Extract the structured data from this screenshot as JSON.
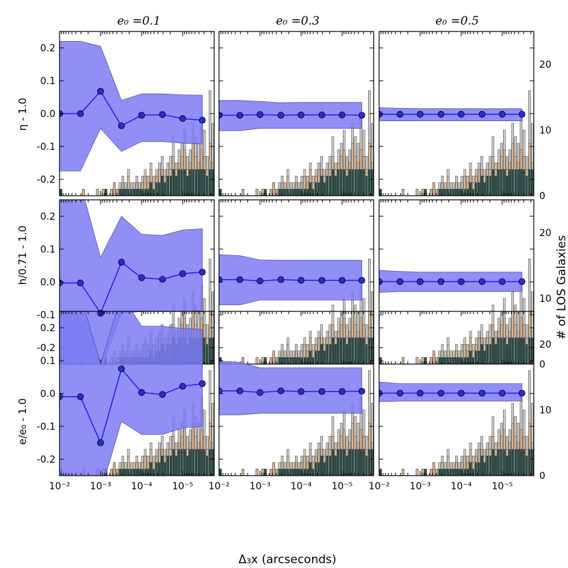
{
  "figure": {
    "column_titles": [
      "e₀ =0.1",
      "e₀ =0.3",
      "e₀ =0.5"
    ],
    "row_labels": [
      "η - 1.0",
      "h/0.71 - 1.0",
      "e/e₀ - 1.0"
    ],
    "xlabel": "Δ₃x (arcseconds)",
    "right_ylabel": "# of LOS Galaxies",
    "y_ticks": [
      "0.2",
      "0.1",
      "0.0",
      "-0.1",
      "-0.2"
    ],
    "x_ticks": [
      "10⁻²",
      "10⁻³",
      "10⁻⁴",
      "10⁻⁵"
    ],
    "hist_ticks": [
      "20",
      "10",
      "0"
    ]
  },
  "chart_data": {
    "type": "line",
    "x_scale": "log (reversed)",
    "xlim": [
      0.01,
      1.7e-06
    ],
    "ylim": [
      -0.25,
      0.25
    ],
    "hist_ylim": [
      0,
      25
    ],
    "x": [
      0.01,
      0.0031,
      0.001,
      0.00031,
      0.0001,
      3.1e-05,
      1e-05,
      3.3e-06
    ],
    "grid": false,
    "colors": {
      "band": "#7b7bf5",
      "band_edge": "#5555aa",
      "line": "#1f1fe8",
      "marker": "#2a2ad8",
      "hist_total": "#c8c8c8",
      "hist_mid": "#ddb58f",
      "hist_low": "#1f4a45"
    },
    "panels": [
      {
        "row": 0,
        "col": 0,
        "values": [
          0.0,
          0.0,
          0.068,
          -0.037,
          -0.005,
          -0.003,
          -0.015,
          -0.02
        ],
        "upper": [
          0.22,
          0.22,
          0.205,
          0.04,
          0.06,
          0.06,
          0.057,
          0.056
        ],
        "lower": [
          -0.175,
          -0.175,
          -0.045,
          -0.115,
          -0.085,
          -0.085,
          -0.09,
          -0.092
        ]
      },
      {
        "row": 0,
        "col": 1,
        "values": [
          -0.005,
          -0.005,
          -0.003,
          -0.005,
          -0.004,
          -0.004,
          -0.004,
          -0.005
        ],
        "upper": [
          0.04,
          0.04,
          0.037,
          0.033,
          0.034,
          0.034,
          0.034,
          0.034
        ],
        "lower": [
          -0.052,
          -0.052,
          -0.045,
          -0.045,
          -0.045,
          -0.045,
          -0.045,
          -0.045
        ]
      },
      {
        "row": 0,
        "col": 2,
        "values": [
          -0.002,
          -0.002,
          -0.002,
          -0.002,
          -0.002,
          -0.002,
          -0.002,
          -0.002
        ],
        "upper": [
          0.018,
          0.016,
          0.015,
          0.015,
          0.015,
          0.015,
          0.015,
          0.015
        ],
        "lower": [
          -0.022,
          -0.022,
          -0.022,
          -0.022,
          -0.022,
          -0.022,
          -0.022,
          -0.022
        ]
      },
      {
        "row": 1,
        "col": 0,
        "values": [
          -0.003,
          -0.003,
          -0.095,
          0.06,
          0.013,
          0.008,
          0.025,
          0.03
        ],
        "upper": [
          0.3,
          0.3,
          0.075,
          0.2,
          0.145,
          0.142,
          0.158,
          0.162
        ],
        "lower": [
          -0.3,
          -0.3,
          -0.27,
          -0.095,
          -0.09,
          -0.09,
          -0.09,
          -0.088
        ]
      },
      {
        "row": 1,
        "col": 1,
        "values": [
          0.007,
          0.007,
          0.003,
          0.007,
          0.005,
          0.005,
          0.005,
          0.005
        ],
        "upper": [
          0.083,
          0.08,
          0.067,
          0.066,
          0.066,
          0.066,
          0.066,
          0.066
        ],
        "lower": [
          -0.07,
          -0.07,
          -0.055,
          -0.055,
          -0.055,
          -0.055,
          -0.055,
          -0.055
        ]
      },
      {
        "row": 1,
        "col": 2,
        "values": [
          0.001,
          0.001,
          0.001,
          0.001,
          0.001,
          0.001,
          0.001,
          0.001
        ],
        "upper": [
          0.035,
          0.032,
          0.03,
          0.03,
          0.03,
          0.03,
          0.03,
          0.03
        ],
        "lower": [
          -0.032,
          -0.029,
          -0.029,
          -0.029,
          -0.029,
          -0.029,
          -0.029,
          -0.029
        ]
      },
      {
        "row": 2,
        "col": 0,
        "values": [
          -0.01,
          -0.01,
          -0.15,
          0.075,
          0.003,
          -0.003,
          0.022,
          0.03
        ],
        "upper": [
          0.3,
          0.3,
          0.09,
          0.3,
          0.205,
          0.205,
          0.198,
          0.195
        ],
        "lower": [
          -0.3,
          -0.3,
          -0.3,
          -0.085,
          -0.125,
          -0.125,
          -0.105,
          -0.1
        ]
      },
      {
        "row": 2,
        "col": 1,
        "values": [
          0.008,
          0.008,
          0.003,
          0.008,
          0.006,
          0.006,
          0.006,
          0.007
        ],
        "upper": [
          0.098,
          0.095,
          0.078,
          0.078,
          0.078,
          0.078,
          0.078,
          0.078
        ],
        "lower": [
          -0.065,
          -0.065,
          -0.06,
          -0.06,
          -0.06,
          -0.06,
          -0.06,
          -0.06
        ]
      },
      {
        "row": 2,
        "col": 2,
        "values": [
          0.001,
          0.001,
          0.001,
          0.001,
          0.001,
          0.001,
          0.001,
          0.001
        ],
        "upper": [
          0.035,
          0.03,
          0.03,
          0.03,
          0.03,
          0.03,
          0.03,
          0.03
        ],
        "lower": [
          -0.025,
          -0.023,
          -0.023,
          -0.023,
          -0.023,
          -0.023,
          -0.023,
          -0.023
        ]
      }
    ],
    "histogram": {
      "total": [
        1,
        0,
        0,
        0,
        0,
        0,
        0,
        0,
        1,
        0,
        0,
        0,
        0,
        1,
        0,
        1,
        1,
        0,
        1,
        2,
        1,
        2,
        3,
        2,
        4,
        2,
        2,
        3,
        2,
        3,
        4,
        3,
        5,
        3,
        4,
        5,
        6,
        4,
        5,
        6,
        9,
        5,
        7,
        8,
        10,
        6,
        7,
        11,
        9,
        8,
        12,
        10,
        6,
        16,
        11
      ],
      "mid": [
        0,
        0,
        0,
        0,
        0,
        0,
        0,
        0,
        1,
        0,
        0,
        0,
        0,
        1,
        0,
        1,
        0,
        0,
        1,
        2,
        1,
        1,
        2,
        1,
        3,
        1,
        1,
        2,
        1,
        2,
        3,
        2,
        4,
        2,
        3,
        4,
        4,
        3,
        4,
        4,
        6,
        4,
        5,
        6,
        7,
        4,
        5,
        8,
        6,
        5,
        7,
        6,
        4,
        8,
        5
      ],
      "low": [
        1,
        0,
        0,
        0,
        0,
        0,
        0,
        0,
        0,
        0,
        0,
        0,
        0,
        0,
        0,
        0,
        1,
        0,
        0,
        0,
        0,
        1,
        1,
        1,
        1,
        1,
        1,
        1,
        1,
        1,
        1,
        1,
        2,
        1,
        2,
        2,
        3,
        2,
        3,
        3,
        4,
        3,
        4,
        4,
        4,
        3,
        4,
        4,
        4,
        4,
        4,
        4,
        3,
        4,
        4
      ]
    }
  }
}
